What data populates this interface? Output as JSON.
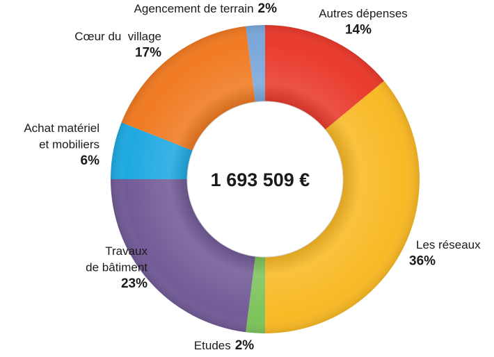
{
  "chart_data": {
    "type": "donut",
    "center_label": "1 693 509 €",
    "categories": [
      [
        "Autres dépenses"
      ],
      [
        "Les réseaux"
      ],
      [
        "Etudes"
      ],
      [
        "Travaux",
        "de bâtiment"
      ],
      [
        "Achat matériel",
        "et mobiliers"
      ],
      [
        "Cœur du  village"
      ],
      [
        "Agencement de terrain"
      ]
    ],
    "values": [
      14,
      36,
      2,
      23,
      6,
      17,
      2
    ],
    "value_labels": [
      "14%",
      "36%",
      "2%",
      "23%",
      "6%",
      "17%",
      "2%"
    ],
    "colors": [
      "#e93a2c",
      "#f9b925",
      "#7dc35b",
      "#725b97",
      "#1fa9e1",
      "#f07a22",
      "#7ba6d9"
    ]
  }
}
